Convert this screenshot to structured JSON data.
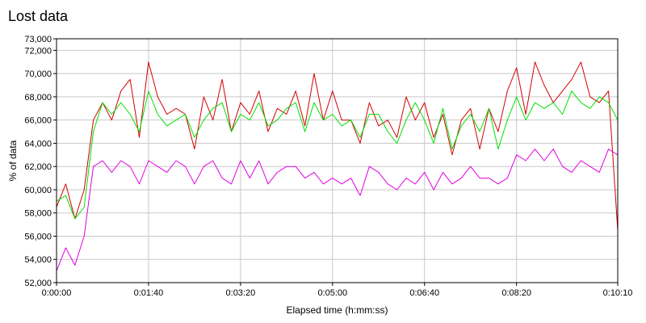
{
  "chart_data": {
    "type": "line",
    "title": "Lost data",
    "xlabel": "Elapsed time (h:mm:ss)",
    "ylabel": "% of data",
    "xlim": [
      0,
      610
    ],
    "ylim": [
      52000,
      73000
    ],
    "grid": true,
    "x_ticks": [
      {
        "value": 0,
        "label": "0:00:00"
      },
      {
        "value": 100,
        "label": "0:01:40"
      },
      {
        "value": 200,
        "label": "0:03:20"
      },
      {
        "value": 300,
        "label": "0:05:00"
      },
      {
        "value": 400,
        "label": "0:06:40"
      },
      {
        "value": 500,
        "label": "0:08:20"
      },
      {
        "value": 610,
        "label": "0:10:10"
      }
    ],
    "y_ticks": [
      {
        "value": 52000,
        "label": "52,000"
      },
      {
        "value": 54000,
        "label": "54,000"
      },
      {
        "value": 56000,
        "label": "56,000"
      },
      {
        "value": 58000,
        "label": "58,000"
      },
      {
        "value": 60000,
        "label": "60,000"
      },
      {
        "value": 62000,
        "label": "62,000"
      },
      {
        "value": 64000,
        "label": "64,000"
      },
      {
        "value": 66000,
        "label": "66,000"
      },
      {
        "value": 68000,
        "label": "68,000"
      },
      {
        "value": 70000,
        "label": "70,000"
      },
      {
        "value": 72000,
        "label": "72,000"
      },
      {
        "value": 73000,
        "label": "73,000"
      }
    ],
    "x": [
      0,
      10,
      20,
      30,
      40,
      50,
      60,
      70,
      80,
      90,
      100,
      110,
      120,
      130,
      140,
      150,
      160,
      170,
      180,
      190,
      200,
      210,
      220,
      230,
      240,
      250,
      260,
      270,
      280,
      290,
      300,
      310,
      320,
      330,
      340,
      350,
      360,
      370,
      380,
      390,
      400,
      410,
      420,
      430,
      440,
      450,
      460,
      470,
      480,
      490,
      500,
      510,
      520,
      530,
      540,
      550,
      560,
      570,
      580,
      590,
      600,
      610
    ],
    "series": [
      {
        "color": "#d40000",
        "values": [
          58500,
          60500,
          57500,
          60000,
          66000,
          67500,
          66000,
          68500,
          69500,
          64500,
          71000,
          68000,
          66500,
          67000,
          66500,
          63500,
          68000,
          66000,
          69500,
          65000,
          67500,
          66500,
          68500,
          65000,
          67000,
          66500,
          68500,
          65500,
          70000,
          66000,
          68500,
          66000,
          66000,
          64000,
          67500,
          65500,
          66000,
          64500,
          68000,
          66000,
          67500,
          64500,
          66500,
          63000,
          66000,
          67000,
          63500,
          67000,
          65000,
          68500,
          70500,
          66500,
          71000,
          69000,
          67500,
          68500,
          69500,
          71000,
          68000,
          67500,
          68500,
          56500
        ]
      },
      {
        "color": "#00e000",
        "values": [
          59000,
          59500,
          57500,
          58500,
          65000,
          67500,
          66500,
          67500,
          66500,
          65000,
          68500,
          66500,
          65500,
          66000,
          66500,
          64500,
          66000,
          67000,
          67500,
          65000,
          66500,
          66000,
          67500,
          65500,
          66000,
          67000,
          67500,
          65000,
          67500,
          66000,
          66500,
          65500,
          66000,
          64500,
          66500,
          66500,
          65000,
          64000,
          66000,
          67500,
          66000,
          64000,
          67000,
          63500,
          65500,
          66500,
          65000,
          67000,
          63500,
          66000,
          68000,
          66000,
          67500,
          67000,
          67500,
          66500,
          68500,
          67500,
          67000,
          68000,
          67500,
          66000
        ]
      },
      {
        "color": "#e000e0",
        "values": [
          53000,
          55000,
          53500,
          56000,
          62000,
          62500,
          61500,
          62500,
          62000,
          60500,
          62500,
          62000,
          61500,
          62500,
          62000,
          60500,
          62000,
          62500,
          61000,
          60500,
          62500,
          61000,
          62500,
          60500,
          61500,
          62000,
          62000,
          61000,
          61500,
          60500,
          61000,
          60500,
          61000,
          59500,
          62000,
          61500,
          60500,
          60000,
          61000,
          60500,
          61500,
          60000,
          61500,
          60500,
          61000,
          62000,
          61000,
          61000,
          60500,
          61000,
          63000,
          62500,
          63500,
          62500,
          63500,
          62000,
          61500,
          62500,
          62000,
          61500,
          63500,
          63000
        ]
      }
    ]
  }
}
